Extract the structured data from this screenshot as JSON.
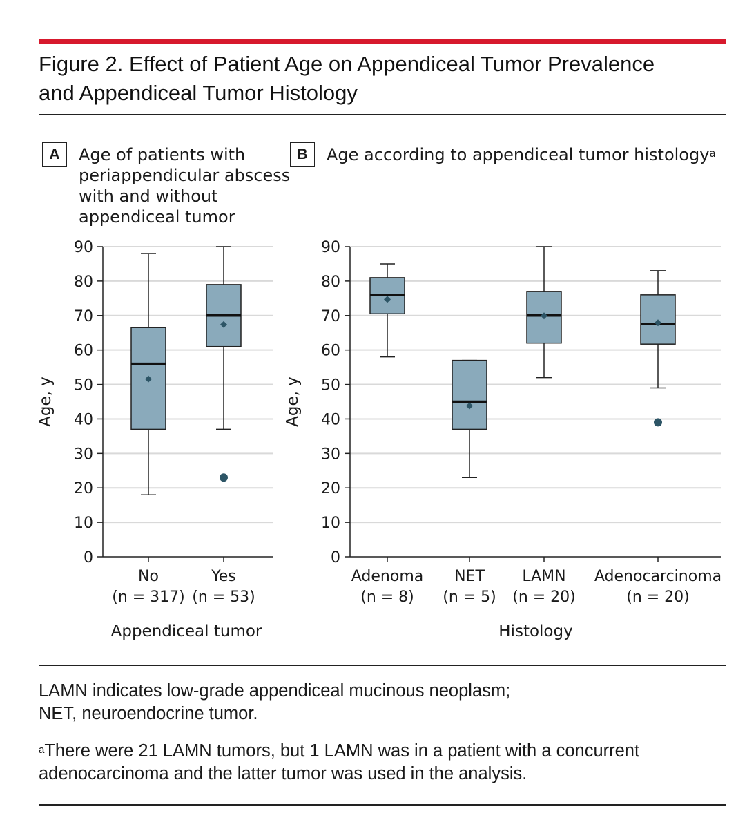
{
  "figure": {
    "title_line1": "Figure 2. Effect of Patient Age on Appendiceal Tumor Prevalence",
    "title_line2": "and Appendiceal Tumor Histology",
    "accent_color": "#d7192d"
  },
  "chart_data": [
    {
      "type": "boxplot",
      "panel_letter": "A",
      "title_lines": [
        "Age of patients with",
        "periappendicular abscess",
        "with and without",
        "appendiceal tumor"
      ],
      "xlabel": "Appendiceal tumor",
      "ylabel": "Age, y",
      "ylim": [
        0,
        90
      ],
      "yticks": [
        0,
        10,
        20,
        30,
        40,
        50,
        60,
        70,
        80,
        90
      ],
      "grid": true,
      "box_color": "#8aaabb",
      "outlier_color": "#2d5566",
      "categories": [
        {
          "label": "No",
          "n_label": "(n = 317)",
          "whisker_low": 18,
          "q1": 37,
          "median": 56,
          "q3": 66.5,
          "whisker_high": 88,
          "mean": 51.6,
          "outliers": []
        },
        {
          "label": "Yes",
          "n_label": "(n = 53)",
          "whisker_low": 37,
          "q1": 61,
          "median": 70,
          "q3": 79,
          "whisker_high": 90,
          "mean": 67.4,
          "outliers": [
            23
          ]
        }
      ]
    },
    {
      "type": "boxplot",
      "panel_letter": "B",
      "title_lines": [
        "Age according to appendiceal tumor histology"
      ],
      "title_sup": "a",
      "xlabel": "Histology",
      "ylabel": "Age, y",
      "ylim": [
        0,
        90
      ],
      "yticks": [
        0,
        10,
        20,
        30,
        40,
        50,
        60,
        70,
        80,
        90
      ],
      "grid": true,
      "box_color": "#8aaabb",
      "outlier_color": "#2d5566",
      "categories": [
        {
          "label": "Adenoma",
          "n_label": "(n = 8)",
          "whisker_low": 58,
          "q1": 70.5,
          "median": 76,
          "q3": 81,
          "whisker_high": 85,
          "mean": 74.7,
          "outliers": []
        },
        {
          "label": "NET",
          "n_label": "(n = 5)",
          "whisker_low": 23,
          "q1": 37,
          "median": 45,
          "q3": 57,
          "whisker_high": 57,
          "mean": 43.8,
          "outliers": []
        },
        {
          "label": "LAMN",
          "n_label": "(n = 20)",
          "whisker_low": 52,
          "q1": 62,
          "median": 70,
          "q3": 77,
          "whisker_high": 90,
          "mean": 69.9,
          "outliers": []
        },
        {
          "label": "Adenocarcinoma",
          "n_label": "(n = 20)",
          "whisker_low": 49,
          "q1": 61.7,
          "median": 67.5,
          "q3": 76,
          "whisker_high": 83,
          "mean": 67.9,
          "outliers": [
            39
          ]
        }
      ]
    }
  ],
  "footnotes": {
    "line1": "LAMN indicates low-grade appendiceal mucinous neoplasm;",
    "line2": "NET, neuroendocrine tumor.",
    "note_marker": "a",
    "note_line1": "There were 21 LAMN tumors, but 1 LAMN was in a patient with a concurrent",
    "note_line2": "adenocarcinoma and the latter tumor was used in the analysis."
  }
}
